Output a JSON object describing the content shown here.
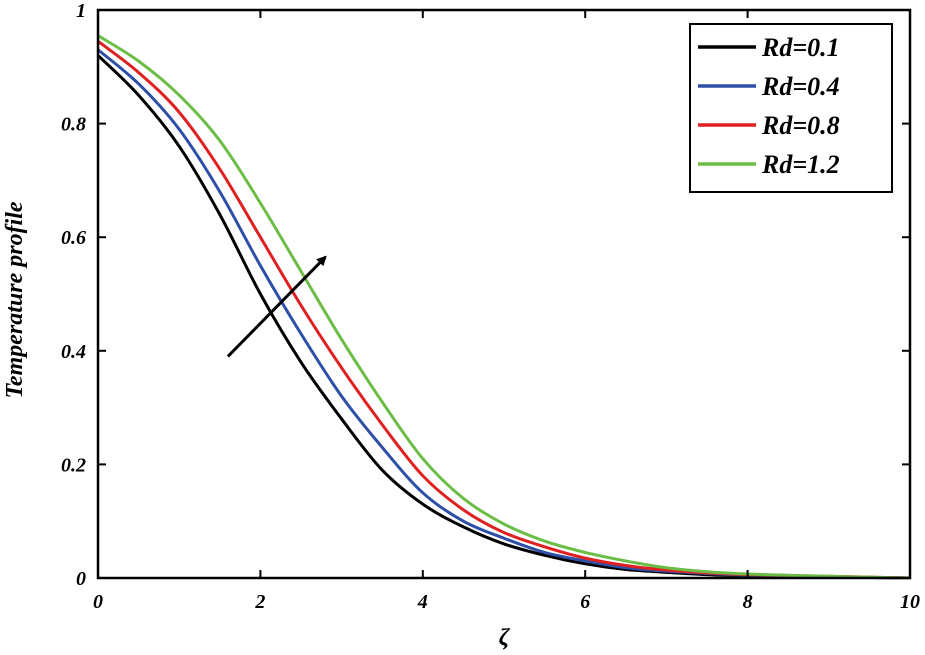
{
  "chart_data": {
    "type": "line",
    "xlabel": "ζ",
    "ylabel": "Temperature profile",
    "xlim": [
      0,
      10
    ],
    "ylim": [
      0,
      1
    ],
    "xticks": [
      0,
      2,
      4,
      6,
      8,
      10
    ],
    "yticks": [
      0,
      0.2,
      0.4,
      0.6,
      0.8,
      1
    ],
    "xtick_labels": [
      "0",
      "2",
      "4",
      "6",
      "8",
      "10"
    ],
    "ytick_labels": [
      "0",
      "0.2",
      "0.4",
      "0.6",
      "0.8",
      "1"
    ],
    "legend_position": "top-right",
    "grid": false,
    "x": [
      0,
      0.5,
      1,
      1.5,
      2,
      2.5,
      3,
      3.5,
      4,
      4.5,
      5,
      5.5,
      6,
      6.5,
      7,
      7.5,
      8,
      9,
      10
    ],
    "series": [
      {
        "name": "Rd=0.1",
        "color": "#000000",
        "values": [
          0.92,
          0.85,
          0.76,
          0.64,
          0.5,
          0.38,
          0.28,
          0.19,
          0.13,
          0.09,
          0.06,
          0.04,
          0.025,
          0.015,
          0.01,
          0.006,
          0.004,
          0.002,
          0.0
        ]
      },
      {
        "name": "Rd=0.4",
        "color": "#2e4fa8",
        "values": [
          0.93,
          0.87,
          0.79,
          0.68,
          0.55,
          0.43,
          0.32,
          0.23,
          0.15,
          0.1,
          0.07,
          0.045,
          0.03,
          0.018,
          0.012,
          0.008,
          0.005,
          0.002,
          0.0
        ]
      },
      {
        "name": "Rd=0.8",
        "color": "#e02020",
        "values": [
          0.945,
          0.89,
          0.82,
          0.72,
          0.6,
          0.48,
          0.37,
          0.27,
          0.18,
          0.12,
          0.08,
          0.055,
          0.035,
          0.022,
          0.014,
          0.009,
          0.006,
          0.003,
          0.0
        ]
      },
      {
        "name": "Rd=1.2",
        "color": "#6bbd45",
        "values": [
          0.955,
          0.91,
          0.85,
          0.77,
          0.66,
          0.54,
          0.42,
          0.31,
          0.21,
          0.14,
          0.095,
          0.065,
          0.045,
          0.03,
          0.018,
          0.011,
          0.007,
          0.003,
          0.0
        ]
      }
    ],
    "annotations": [
      {
        "type": "arrow",
        "from": [
          1.6,
          0.39
        ],
        "to": [
          2.8,
          0.565
        ]
      }
    ]
  }
}
